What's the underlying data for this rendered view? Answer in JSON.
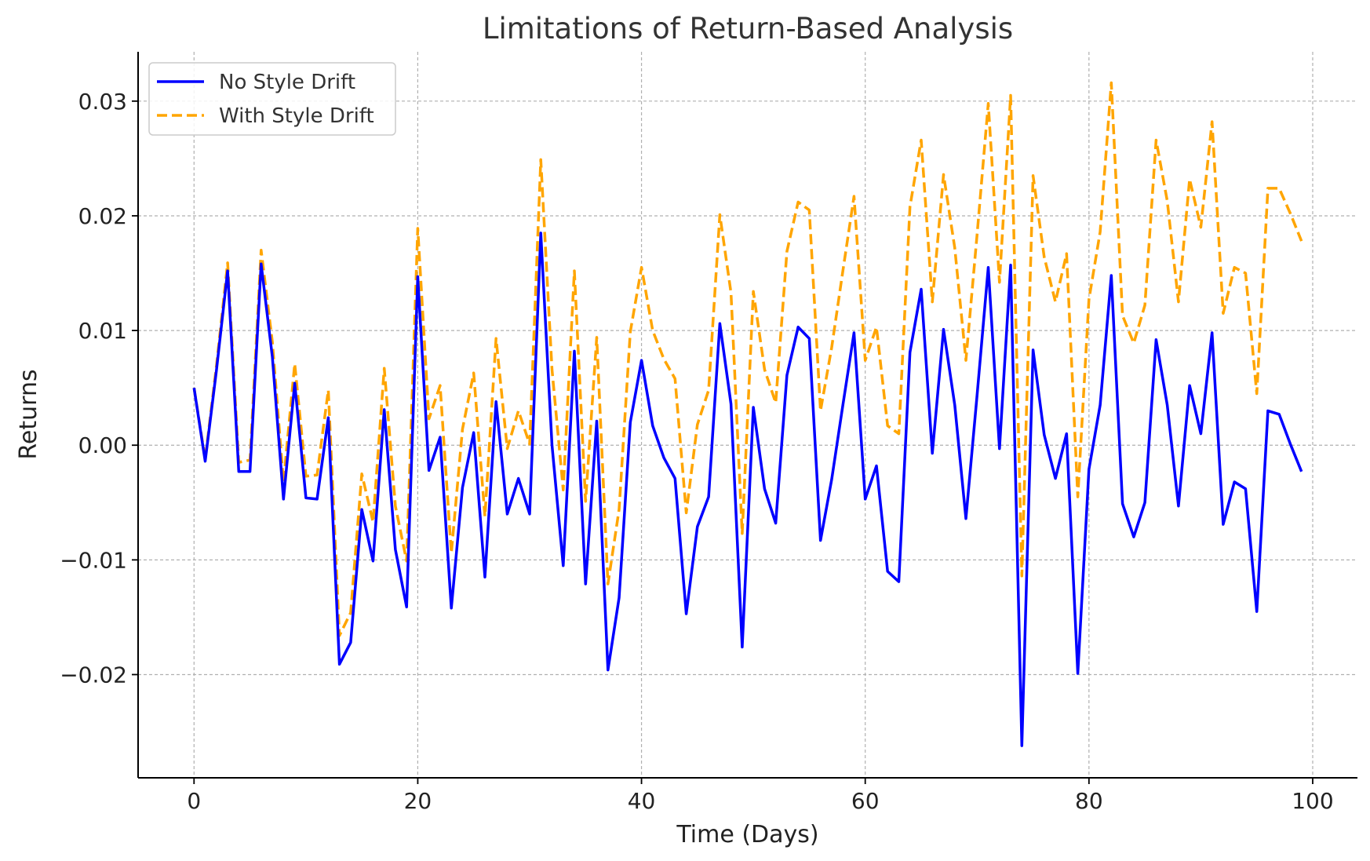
{
  "chart_data": {
    "type": "line",
    "title": "Limitations of Return-Based Analysis",
    "xlabel": "Time (Days)",
    "ylabel": "Returns",
    "xlim": [
      -5,
      104
    ],
    "ylim": [
      -0.029,
      0.0343
    ],
    "x_ticks": [
      0,
      20,
      40,
      60,
      80,
      100
    ],
    "x_tick_labels": [
      "0",
      "20",
      "40",
      "60",
      "80",
      "100"
    ],
    "y_ticks": [
      -0.02,
      -0.01,
      0.0,
      0.01,
      0.02,
      0.03
    ],
    "y_tick_labels": [
      "−0.02",
      "−0.01",
      "0.00",
      "0.01",
      "0.02",
      "0.03"
    ],
    "grid": true,
    "legend_position": "top-left",
    "x": [
      0,
      1,
      2,
      3,
      4,
      5,
      6,
      7,
      8,
      9,
      10,
      11,
      12,
      13,
      14,
      15,
      16,
      17,
      18,
      19,
      20,
      21,
      22,
      23,
      24,
      25,
      26,
      27,
      28,
      29,
      30,
      31,
      32,
      33,
      34,
      35,
      36,
      37,
      38,
      39,
      40,
      41,
      42,
      43,
      44,
      45,
      46,
      47,
      48,
      49,
      50,
      51,
      52,
      53,
      54,
      55,
      56,
      57,
      58,
      59,
      60,
      61,
      62,
      63,
      64,
      65,
      66,
      67,
      68,
      69,
      70,
      71,
      72,
      73,
      74,
      75,
      76,
      77,
      78,
      79,
      80,
      81,
      82,
      83,
      84,
      85,
      86,
      87,
      88,
      89,
      90,
      91,
      92,
      93,
      94,
      95,
      96,
      97,
      98,
      99
    ],
    "series": [
      {
        "name": "No Style Drift",
        "color": "#0000ff",
        "style": "solid",
        "values": [
          0.005,
          -0.0014,
          0.0065,
          0.0152,
          -0.0023,
          -0.0023,
          0.0158,
          0.0077,
          -0.0047,
          0.0054,
          -0.0046,
          -0.0047,
          0.0024,
          -0.0191,
          -0.0172,
          -0.0056,
          -0.0101,
          0.0031,
          -0.0091,
          -0.0141,
          0.0147,
          -0.0022,
          0.0007,
          -0.0142,
          -0.0037,
          0.0011,
          -0.0115,
          0.0038,
          -0.006,
          -0.0029,
          -0.006,
          0.0185,
          0.0,
          -0.0105,
          0.0082,
          -0.0121,
          0.0021,
          -0.0196,
          -0.0133,
          0.002,
          0.0074,
          0.0017,
          -0.0011,
          -0.0029,
          -0.0147,
          -0.0071,
          -0.0045,
          0.0106,
          0.0036,
          -0.0176,
          0.0033,
          -0.0038,
          -0.0068,
          0.0061,
          0.0103,
          0.0093,
          -0.0083,
          -0.003,
          0.0035,
          0.0098,
          -0.0047,
          -0.0018,
          -0.011,
          -0.0119,
          0.0081,
          0.0136,
          -0.0007,
          0.0101,
          0.0035,
          -0.0064,
          0.0044,
          0.0155,
          -0.0003,
          0.0157,
          -0.0262,
          0.0083,
          0.0009,
          -0.0029,
          0.001,
          -0.0199,
          -0.0021,
          0.0035,
          0.0148,
          -0.0051,
          -0.008,
          -0.005,
          0.0092,
          0.0035,
          -0.0053,
          0.0052,
          0.001,
          0.0098,
          -0.0069,
          -0.0032,
          -0.0038,
          -0.0145,
          0.003,
          0.0027,
          0.0001,
          -0.0023
        ]
      },
      {
        "name": "With Style Drift",
        "color": "#ffa500",
        "style": "dashed",
        "values": [
          0.005,
          -0.0012,
          0.0069,
          0.0159,
          -0.0015,
          -0.0013,
          0.017,
          0.009,
          -0.0032,
          0.0071,
          -0.0027,
          -0.0026,
          0.0048,
          -0.0166,
          -0.0146,
          -0.0025,
          -0.0067,
          0.0067,
          -0.0053,
          -0.0101,
          0.0189,
          0.0023,
          0.0052,
          -0.0094,
          0.0014,
          0.0063,
          -0.0062,
          0.0093,
          -0.0003,
          0.003,
          0.0001,
          0.0249,
          0.0066,
          -0.0039,
          0.0152,
          -0.0049,
          0.0094,
          -0.0121,
          -0.0056,
          0.0099,
          0.0155,
          0.01,
          0.0075,
          0.0058,
          -0.0059,
          0.0018,
          0.0048,
          0.0201,
          0.0133,
          -0.0077,
          0.0134,
          0.0066,
          0.0037,
          0.0169,
          0.0212,
          0.0205,
          0.003,
          0.0085,
          0.0152,
          0.0217,
          0.0074,
          0.0103,
          0.0017,
          0.001,
          0.0208,
          0.0266,
          0.0125,
          0.0236,
          0.0172,
          0.0074,
          0.0184,
          0.0298,
          0.0142,
          0.0305,
          -0.0114,
          0.0235,
          0.0164,
          0.0125,
          0.0167,
          -0.0045,
          0.0127,
          0.0186,
          0.0316,
          0.0113,
          0.0089,
          0.0122,
          0.0266,
          0.0213,
          0.0125,
          0.0232,
          0.019,
          0.0282,
          0.0115,
          0.0155,
          0.015,
          0.0045,
          0.0224,
          0.0224,
          0.0202,
          0.0178
        ]
      }
    ]
  }
}
